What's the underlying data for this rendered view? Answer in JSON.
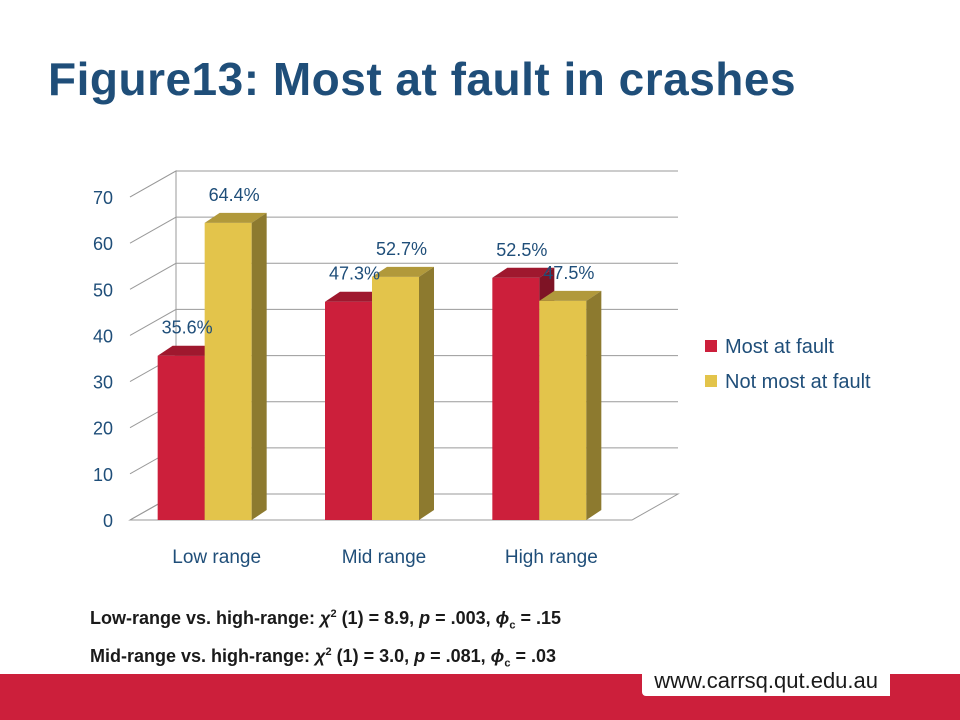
{
  "title": "Figure13: Most at fault in crashes",
  "chart_data": {
    "type": "bar",
    "categories": [
      "Low range",
      "Mid range",
      "High range"
    ],
    "series": [
      {
        "name": "Most at fault",
        "values": [
          35.6,
          47.3,
          52.5
        ],
        "labels": [
          "35.6%",
          "47.3%",
          "52.5%"
        ],
        "color": "#cc1f3b"
      },
      {
        "name": "Not most at fault",
        "values": [
          64.4,
          52.7,
          47.5
        ],
        "labels": [
          "64.4%",
          "52.7%",
          "47.5%"
        ],
        "color": "#e3c44b"
      }
    ],
    "ylim": [
      0,
      70
    ],
    "yticks": [
      "0",
      "10",
      "20",
      "30",
      "40",
      "50",
      "60",
      "70"
    ],
    "ytick_values": [
      0,
      10,
      20,
      30,
      40,
      50,
      60,
      70
    ],
    "grid": true,
    "style": "3d",
    "legend": "right",
    "xlabel": "",
    "ylabel": ""
  },
  "stats": {
    "line1": {
      "prefix": "Low-range vs. high-range: ",
      "chi": "χ",
      "sup": "2",
      "mid": " (1) = 8.9, ",
      "p": "p",
      "pval": " = .003, ",
      "phi": "ϕ",
      "sub": "c",
      "end": " = .15"
    },
    "line2": {
      "prefix": "Mid-range vs. high-range: ",
      "chi": "χ",
      "sup": "2",
      "mid": " (1) = 3.0, ",
      "p": "p",
      "pval": " = .081, ",
      "phi": "ϕ",
      "sub": "c",
      "end": " = .03"
    }
  },
  "footer": {
    "url": "www.carrsq.qut.edu.au",
    "color": "#cc1f3b"
  }
}
